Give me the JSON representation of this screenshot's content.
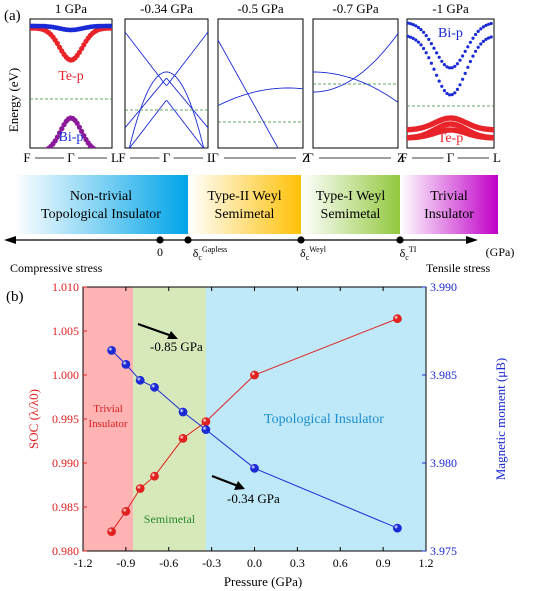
{
  "figure": {
    "panel_a_label": "(a)",
    "panel_b_label": "(b)"
  },
  "bands": {
    "ylabel": "Energy (eV)",
    "panels": [
      {
        "title": "1 GPa",
        "xl": "F",
        "mid": "Γ",
        "xr": "L",
        "labels": [
          {
            "text": "Te-p",
            "color": "#e8242a"
          },
          {
            "text": "Bi-p",
            "color": "#1a2bd6"
          }
        ]
      },
      {
        "title": "-0.34 GPa",
        "xl": "F",
        "mid": "Γ",
        "xr": "L",
        "labels": []
      },
      {
        "title": "-0.5 GPa",
        "xl": "Γ",
        "mid": "",
        "xr": "Z",
        "labels": []
      },
      {
        "title": "-0.7 GPa",
        "xl": "Γ",
        "mid": "",
        "xr": "Z",
        "labels": []
      },
      {
        "title": "-1 GPa",
        "xl": "F",
        "mid": "Γ",
        "xr": "L",
        "labels": [
          {
            "text": "Bi-p",
            "color": "#1a2bd6"
          },
          {
            "text": "Te-p",
            "color": "#e8242a"
          }
        ]
      }
    ]
  },
  "phase_bar": {
    "phases": [
      {
        "line1": "Non-trivial",
        "line2": "Topological Insulator",
        "from": "#ffffff",
        "to": "#00a4e8"
      },
      {
        "line1": "Type-II Weyl",
        "line2": "Semimetal",
        "from": "#ffffff",
        "to": "#ffc107"
      },
      {
        "line1": "Type-I Weyl",
        "line2": "Semimetal",
        "from": "#ffffff",
        "to": "#92c83e"
      },
      {
        "line1": "Trivial",
        "line2": "Insulator",
        "from": "#ffffff",
        "to": "#c000c8"
      }
    ],
    "axis": {
      "zero": "0",
      "delta": "δ",
      "c": "c",
      "gapless": "Gapless",
      "weyl": "Weyl",
      "ti": "TI",
      "unit": "(GPa)",
      "left_label": "Compressive stress",
      "right_label": "Tensile stress"
    }
  },
  "chart_data": {
    "type": "scatter",
    "xlabel": "Pressure (GPa)",
    "ylabel": "SOC (λ/λ0)",
    "y2label": "Magnetic moment (μB)",
    "xlim": [
      -1.2,
      1.2
    ],
    "ylim": [
      0.98,
      1.01
    ],
    "y2lim": [
      3.975,
      3.99
    ],
    "xticks": [
      "-1.2",
      "-0.9",
      "-0.6",
      "-0.3",
      "0.0",
      "0.3",
      "0.6",
      "0.9",
      "1.2"
    ],
    "yticks": [
      "0.980",
      "0.985",
      "0.990",
      "0.995",
      "1.000",
      "1.005",
      "1.010"
    ],
    "y2ticks": [
      "3.975",
      "3.980",
      "3.985",
      "3.990"
    ],
    "regions": [
      {
        "label_line1": "Trivial",
        "label_line2": "Insulator",
        "x0": -1.2,
        "x1": -0.85,
        "color": "#ff9a9a"
      },
      {
        "label_line1": "Semimetal",
        "label_line2": "",
        "x0": -0.85,
        "x1": -0.34,
        "color": "#c9e2a4"
      },
      {
        "label_line1": "Topological Insulator",
        "label_line2": "",
        "x0": -0.34,
        "x1": 1.2,
        "color": "#a9e0f5"
      }
    ],
    "annotations": [
      {
        "text": "-0.85 GPa"
      },
      {
        "text": "-0.34 GPa"
      }
    ],
    "series": [
      {
        "axis": "left",
        "color": "#e0211f",
        "x": [
          -1.0,
          -0.9,
          -0.8,
          -0.7,
          -0.5,
          -0.34,
          0.0,
          1.0
        ],
        "y": [
          0.9822,
          0.9845,
          0.9871,
          0.9885,
          0.9928,
          0.9947,
          1.0,
          1.0064
        ]
      },
      {
        "axis": "right",
        "color": "#1c2ad6",
        "x": [
          -1.0,
          -0.9,
          -0.8,
          -0.7,
          -0.5,
          -0.34,
          0.0,
          1.0
        ],
        "y": [
          3.9864,
          3.9856,
          3.9847,
          3.9843,
          3.9829,
          3.9819,
          3.9797,
          3.9763
        ]
      }
    ]
  }
}
